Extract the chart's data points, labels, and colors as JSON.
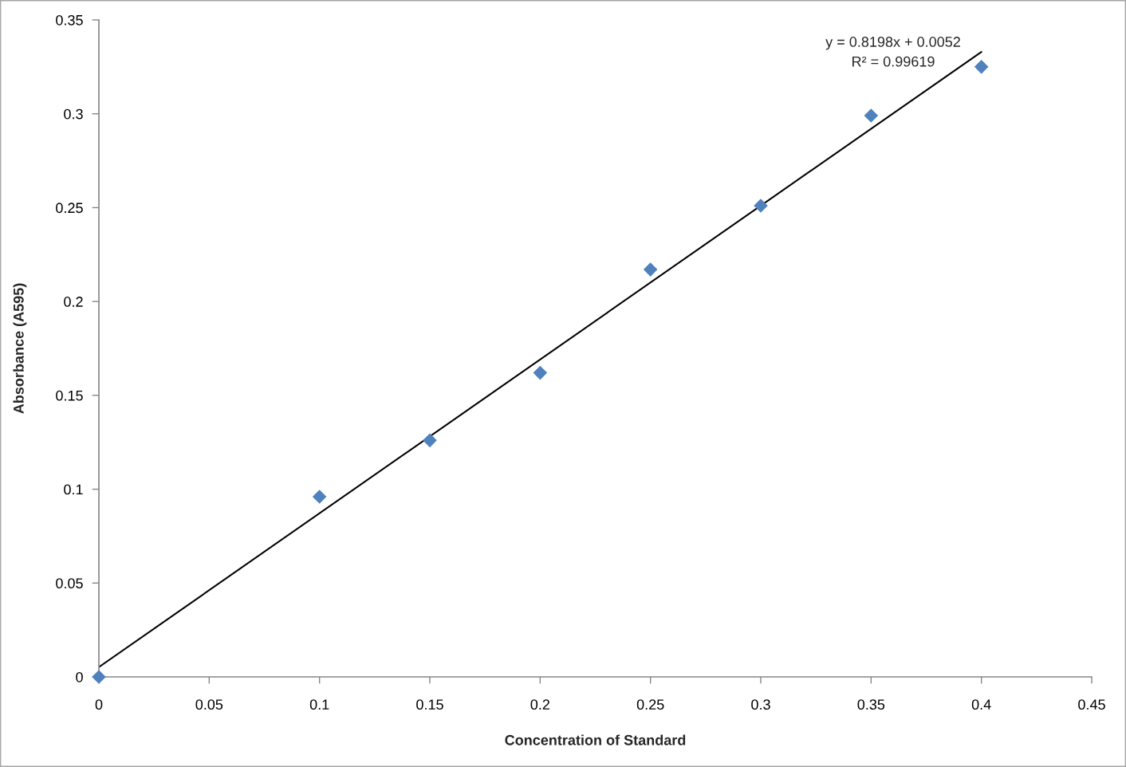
{
  "chart_data": {
    "type": "scatter",
    "xlabel": "Concentration of Standard",
    "ylabel": "Absorbance (A595)",
    "x": [
      0,
      0.1,
      0.15,
      0.2,
      0.25,
      0.3,
      0.35,
      0.4
    ],
    "series": [
      {
        "color": "#4f81bd",
        "marker": "diamond",
        "values": [
          0,
          0.096,
          0.126,
          0.162,
          0.217,
          0.251,
          0.299,
          0.325
        ]
      },
      {
        "type": "line",
        "color": "#000000",
        "marker": "none",
        "line_style": "solid",
        "x": [
          0,
          0.4
        ],
        "values": [
          0.0052,
          0.333
        ]
      }
    ],
    "annotations": [
      "y = 0.8198x + 0.0052",
      "R² = 0.99619"
    ],
    "xlim": [
      0,
      0.45
    ],
    "xticks": [
      0,
      0.05,
      0.1,
      0.15,
      0.2,
      0.25,
      0.3,
      0.35,
      0.4,
      0.45
    ],
    "ylim": [
      0,
      0.35
    ],
    "yticks": [
      0,
      0.05,
      0.1,
      0.15,
      0.2,
      0.25,
      0.3,
      0.35
    ],
    "grid": false,
    "legend": false
  }
}
